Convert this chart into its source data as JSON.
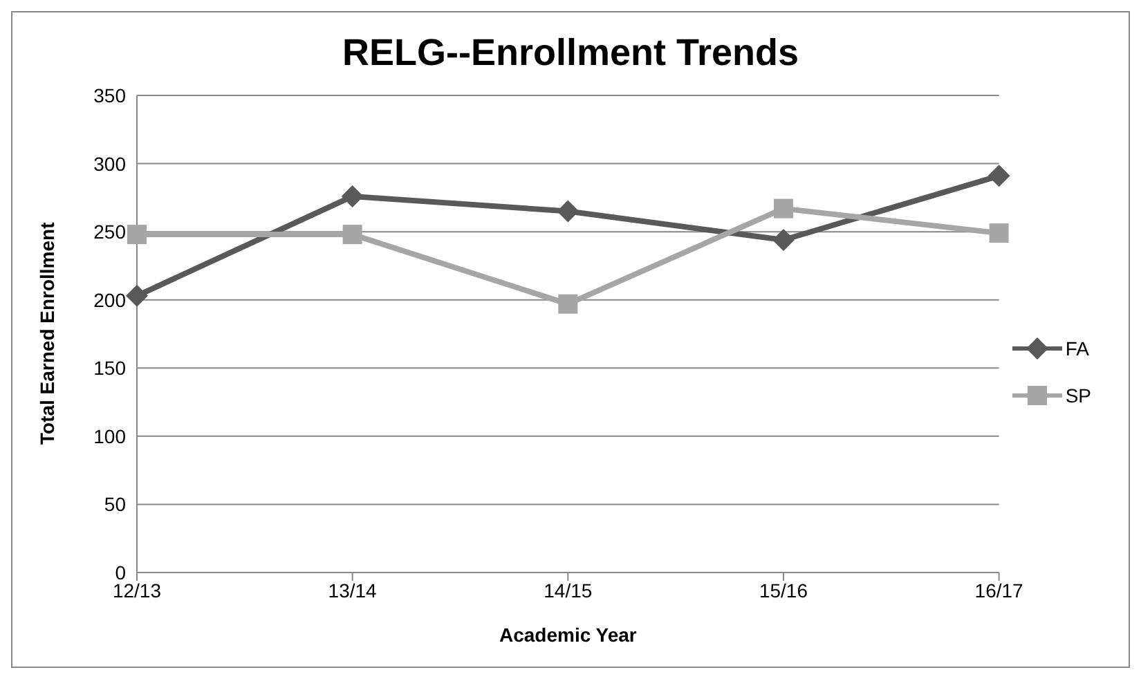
{
  "chart_data": {
    "type": "line",
    "title": "RELG--Enrollment Trends",
    "xlabel": "Academic Year",
    "ylabel": "Total Earned Enrollment",
    "categories": [
      "12/13",
      "13/14",
      "14/15",
      "15/16",
      "16/17"
    ],
    "series": [
      {
        "name": "FA",
        "color": "#595959",
        "marker": "diamond",
        "values": [
          203,
          276,
          265,
          244,
          291
        ]
      },
      {
        "name": "SP",
        "color": "#a6a6a6",
        "marker": "square",
        "values": [
          248,
          248,
          197,
          267,
          249
        ]
      }
    ],
    "ylim": [
      0,
      350
    ],
    "yticks": [
      0,
      50,
      100,
      150,
      200,
      250,
      300,
      350
    ],
    "grid": "y",
    "legend": "right"
  }
}
